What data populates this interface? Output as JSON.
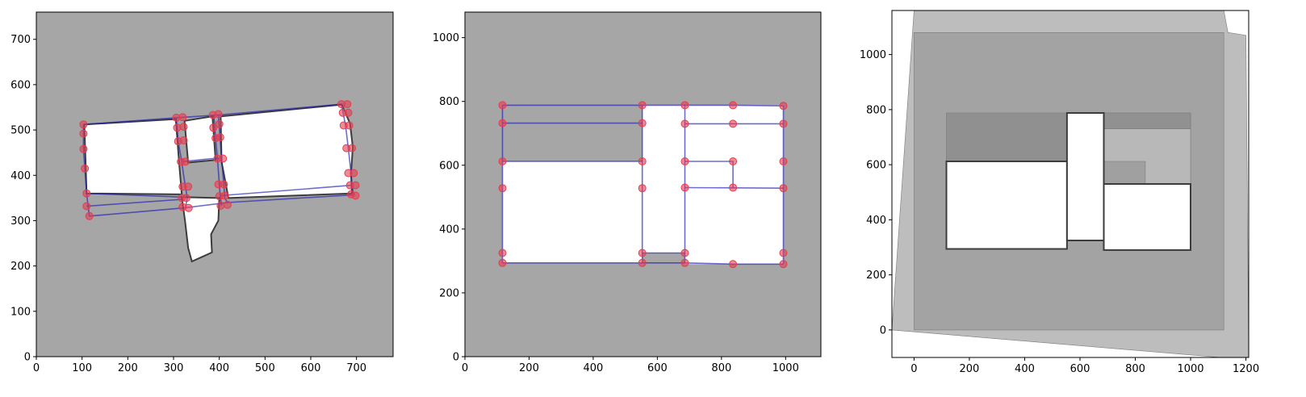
{
  "chart_data": [
    {
      "type": "scatter",
      "title": "",
      "xlabel": "",
      "ylabel": "",
      "xlim": [
        0,
        780
      ],
      "ylim": [
        0,
        760
      ],
      "xticks": [
        0,
        100,
        200,
        300,
        400,
        500,
        600,
        700
      ],
      "yticks": [
        0,
        100,
        200,
        300,
        400,
        500,
        600,
        700
      ],
      "xtick_labels": [
        "0",
        "100",
        "200",
        "300",
        "400",
        "500",
        "600",
        "700"
      ],
      "ytick_labels": [
        "0",
        "100",
        "200",
        "300",
        "400",
        "500",
        "600",
        "700"
      ],
      "grid": false,
      "background_color": "#a6a6a6",
      "map_fill": "#ffffff",
      "map_outline": "#3c3c3c",
      "line_color": "#1e1eb4",
      "point_color": "#e63c50",
      "map_regions": [
        [
          [
            105,
            512
          ],
          [
            305,
            524
          ],
          [
            312,
            430
          ],
          [
            318,
            358
          ],
          [
            110,
            360
          ]
        ],
        [
          [
            324,
            520
          ],
          [
            385,
            530
          ],
          [
            392,
            434
          ],
          [
            332,
            428
          ]
        ],
        [
          [
            403,
            530
          ],
          [
            668,
            556
          ],
          [
            686,
            514
          ],
          [
            692,
            462
          ],
          [
            688,
            404
          ],
          [
            690,
            360
          ],
          [
            420,
            350
          ],
          [
            405,
            430
          ]
        ],
        [
          [
            318,
            352
          ],
          [
            400,
            350
          ],
          [
            398,
            300
          ],
          [
            382,
            270
          ],
          [
            384,
            230
          ],
          [
            340,
            210
          ],
          [
            332,
            240
          ],
          [
            325,
            300
          ]
        ]
      ],
      "edges": [
        [
          [
            103,
            512
          ],
          [
            306,
            527
          ],
          [
            398,
            533
          ],
          [
            667,
            557
          ]
        ],
        [
          [
            103,
            512
          ],
          [
            103,
            458
          ],
          [
            106,
            415
          ],
          [
            110,
            360
          ]
        ],
        [
          [
            110,
            360
          ],
          [
            318,
            352
          ]
        ],
        [
          [
            110,
            332
          ],
          [
            320,
            347
          ]
        ],
        [
          [
            116,
            310
          ],
          [
            322,
            328
          ],
          [
            418,
            340
          ],
          [
            694,
            357
          ]
        ],
        [
          [
            306,
            527
          ],
          [
            310,
            475
          ],
          [
            318,
            430
          ]
        ],
        [
          [
            318,
            430
          ],
          [
            322,
            400
          ],
          [
            330,
            350
          ],
          [
            326,
            328
          ]
        ],
        [
          [
            318,
            430
          ],
          [
            385,
            437
          ],
          [
            404,
            437
          ]
        ],
        [
          [
            388,
            533
          ],
          [
            392,
            480
          ],
          [
            396,
            437
          ],
          [
            402,
            355
          ],
          [
            405,
            333
          ]
        ],
        [
          [
            398,
            533
          ],
          [
            402,
            480
          ],
          [
            405,
            437
          ],
          [
            410,
            380
          ],
          [
            412,
            350
          ],
          [
            418,
            340
          ]
        ],
        [
          [
            667,
            557
          ],
          [
            676,
            510
          ],
          [
            682,
            460
          ],
          [
            688,
            405
          ],
          [
            690,
            378
          ],
          [
            694,
            357
          ]
        ],
        [
          [
            110,
            360
          ],
          [
            116,
            310
          ]
        ],
        [
          [
            402,
            355
          ],
          [
            690,
            378
          ]
        ]
      ],
      "points": [
        [
          103,
          512
        ],
        [
          103,
          492
        ],
        [
          103,
          458
        ],
        [
          106,
          415
        ],
        [
          110,
          360
        ],
        [
          110,
          332
        ],
        [
          116,
          310
        ],
        [
          306,
          527
        ],
        [
          320,
          528
        ],
        [
          308,
          505
        ],
        [
          322,
          507
        ],
        [
          310,
          475
        ],
        [
          322,
          477
        ],
        [
          316,
          430
        ],
        [
          326,
          430
        ],
        [
          332,
          375
        ],
        [
          320,
          375
        ],
        [
          328,
          350
        ],
        [
          318,
          350
        ],
        [
          320,
          330
        ],
        [
          333,
          328
        ],
        [
          386,
          533
        ],
        [
          398,
          535
        ],
        [
          387,
          505
        ],
        [
          400,
          513
        ],
        [
          392,
          482
        ],
        [
          402,
          484
        ],
        [
          396,
          437
        ],
        [
          408,
          437
        ],
        [
          398,
          380
        ],
        [
          410,
          380
        ],
        [
          400,
          354
        ],
        [
          412,
          355
        ],
        [
          403,
          333
        ],
        [
          418,
          335
        ],
        [
          667,
          557
        ],
        [
          680,
          557
        ],
        [
          670,
          538
        ],
        [
          682,
          538
        ],
        [
          672,
          510
        ],
        [
          684,
          510
        ],
        [
          678,
          460
        ],
        [
          690,
          460
        ],
        [
          682,
          405
        ],
        [
          694,
          405
        ],
        [
          686,
          378
        ],
        [
          698,
          378
        ],
        [
          688,
          358
        ],
        [
          698,
          355
        ]
      ]
    },
    {
      "type": "scatter",
      "title": "",
      "xlabel": "",
      "ylabel": "",
      "xlim": [
        0,
        1110
      ],
      "ylim": [
        0,
        1080
      ],
      "xticks": [
        0,
        200,
        400,
        600,
        800,
        1000
      ],
      "yticks": [
        0,
        200,
        400,
        600,
        800,
        1000
      ],
      "xtick_labels": [
        "0",
        "200",
        "400",
        "600",
        "800",
        "1000"
      ],
      "ytick_labels": [
        "0",
        "200",
        "400",
        "600",
        "800",
        "1000"
      ],
      "grid": false,
      "background_color": "#a6a6a6",
      "map_fill": "#ffffff",
      "map_outline": "#3c3c3c",
      "line_color": "#1e1eb4",
      "point_color": "#e63c50",
      "rooms_white": [
        [
          [
            117,
            612
          ],
          [
            553,
            612
          ],
          [
            553,
            294
          ],
          [
            117,
            294
          ]
        ],
        [
          [
            553,
            788
          ],
          [
            686,
            788
          ],
          [
            686,
            325
          ],
          [
            553,
            325
          ]
        ],
        [
          [
            686,
            730
          ],
          [
            993,
            730
          ],
          [
            993,
            530
          ],
          [
            686,
            530
          ]
        ],
        [
          [
            686,
            788
          ],
          [
            993,
            788
          ],
          [
            993,
            730
          ],
          [
            686,
            730
          ]
        ],
        [
          [
            686,
            530
          ],
          [
            993,
            530
          ],
          [
            993,
            290
          ],
          [
            686,
            290
          ]
        ]
      ],
      "rooms_gray": [
        [
          [
            117,
            788
          ],
          [
            553,
            788
          ],
          [
            553,
            732
          ],
          [
            117,
            732
          ]
        ],
        [
          [
            117,
            732
          ],
          [
            553,
            732
          ],
          [
            553,
            612
          ],
          [
            117,
            612
          ]
        ],
        [
          [
            686,
            612
          ],
          [
            836,
            612
          ],
          [
            836,
            530
          ],
          [
            686,
            530
          ]
        ],
        [
          [
            553,
            325
          ],
          [
            686,
            325
          ],
          [
            686,
            294
          ],
          [
            553,
            294
          ]
        ]
      ],
      "edges": [
        [
          [
            117,
            788
          ],
          [
            553,
            788
          ],
          [
            686,
            788
          ],
          [
            836,
            788
          ],
          [
            993,
            786
          ]
        ],
        [
          [
            117,
            732
          ],
          [
            553,
            732
          ]
        ],
        [
          [
            117,
            612
          ],
          [
            553,
            612
          ]
        ],
        [
          [
            117,
            788
          ],
          [
            117,
            294
          ]
        ],
        [
          [
            117,
            294
          ],
          [
            553,
            294
          ],
          [
            686,
            294
          ],
          [
            836,
            290
          ],
          [
            993,
            290
          ]
        ],
        [
          [
            553,
            788
          ],
          [
            553,
            294
          ]
        ],
        [
          [
            686,
            788
          ],
          [
            686,
            294
          ]
        ],
        [
          [
            993,
            786
          ],
          [
            993,
            290
          ]
        ],
        [
          [
            686,
            730
          ],
          [
            993,
            730
          ]
        ],
        [
          [
            686,
            612
          ],
          [
            836,
            612
          ],
          [
            836,
            530
          ]
        ],
        [
          [
            686,
            530
          ],
          [
            993,
            528
          ]
        ],
        [
          [
            553,
            325
          ],
          [
            686,
            325
          ]
        ]
      ],
      "points": [
        [
          117,
          788
        ],
        [
          553,
          788
        ],
        [
          686,
          788
        ],
        [
          836,
          788
        ],
        [
          993,
          786
        ],
        [
          117,
          732
        ],
        [
          553,
          732
        ],
        [
          686,
          730
        ],
        [
          836,
          730
        ],
        [
          993,
          730
        ],
        [
          117,
          612
        ],
        [
          553,
          612
        ],
        [
          686,
          612
        ],
        [
          836,
          612
        ],
        [
          993,
          612
        ],
        [
          117,
          528
        ],
        [
          553,
          528
        ],
        [
          686,
          530
        ],
        [
          836,
          530
        ],
        [
          993,
          528
        ],
        [
          117,
          325
        ],
        [
          553,
          325
        ],
        [
          686,
          325
        ],
        [
          993,
          325
        ],
        [
          117,
          294
        ],
        [
          553,
          294
        ],
        [
          686,
          294
        ],
        [
          836,
          290
        ],
        [
          993,
          290
        ]
      ]
    },
    {
      "type": "heatmap",
      "title": "",
      "xlabel": "",
      "ylabel": "",
      "xlim": [
        -80,
        1210
      ],
      "ylim": [
        -100,
        1160
      ],
      "xticks": [
        0,
        200,
        400,
        600,
        800,
        1000,
        1200
      ],
      "yticks": [
        0,
        200,
        400,
        600,
        800,
        1000
      ],
      "xtick_labels": [
        "0",
        "200",
        "400",
        "600",
        "800",
        "1000",
        "1200"
      ],
      "ytick_labels": [
        "0",
        "200",
        "400",
        "600",
        "800",
        "1000"
      ],
      "grid": false,
      "background_color": "#ffffff",
      "layers": [
        {
          "fill": "#bdbdbd",
          "polygon": [
            [
              -80,
              0
            ],
            [
              0,
              1160
            ],
            [
              1120,
              1160
            ],
            [
              1135,
              1080
            ],
            [
              1200,
              1070
            ],
            [
              1210,
              -100
            ],
            [
              1130,
              -100
            ],
            [
              1110,
              -100
            ]
          ]
        },
        {
          "fill": "#a3a3a3",
          "polygon": [
            [
              0,
              1080
            ],
            [
              1120,
              1080
            ],
            [
              1120,
              0
            ],
            [
              0,
              0
            ]
          ]
        },
        {
          "fill": "#909090",
          "polygon": [
            [
              117,
              788
            ],
            [
              553,
              788
            ],
            [
              553,
              612
            ],
            [
              117,
              612
            ]
          ]
        },
        {
          "fill": "#b8b8b8",
          "polygon": [
            [
              686,
              788
            ],
            [
              1000,
              788
            ],
            [
              1000,
              530
            ],
            [
              686,
              530
            ]
          ]
        },
        {
          "fill": "#a0a0a0",
          "polygon": [
            [
              686,
              612
            ],
            [
              836,
              612
            ],
            [
              836,
              530
            ],
            [
              686,
              530
            ]
          ]
        },
        {
          "fill": "#919191",
          "polygon": [
            [
              686,
              788
            ],
            [
              1000,
              788
            ],
            [
              1000,
              730
            ],
            [
              686,
              730
            ]
          ]
        }
      ],
      "map_regions": [
        [
          [
            117,
            612
          ],
          [
            553,
            612
          ],
          [
            553,
            294
          ],
          [
            117,
            294
          ]
        ],
        [
          [
            553,
            788
          ],
          [
            686,
            788
          ],
          [
            686,
            325
          ],
          [
            553,
            325
          ]
        ],
        [
          [
            686,
            530
          ],
          [
            1000,
            530
          ],
          [
            1000,
            290
          ],
          [
            686,
            290
          ]
        ]
      ],
      "map_fill": "#ffffff",
      "map_outline": "#3c3c3c"
    }
  ]
}
